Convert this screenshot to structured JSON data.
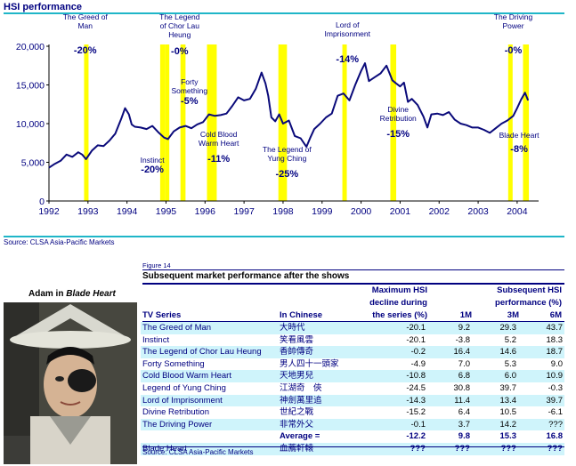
{
  "chart_title": "HSI performance",
  "chart_source": "Source: CLSA Asia-Pacific Markets",
  "chart_data": {
    "type": "line",
    "title": "HSI performance",
    "x_ticks": [
      "1992",
      "1993",
      "1994",
      "1995",
      "1996",
      "1997",
      "1998",
      "1999",
      "2000",
      "2001",
      "2002",
      "2003",
      "2004"
    ],
    "y_ticks": [
      "0",
      "5,000",
      "10,000",
      "15,000",
      "20,000"
    ],
    "xlim": [
      1992,
      2004.55
    ],
    "ylim": [
      0,
      20000
    ],
    "series": [
      {
        "x": [
          1992.0,
          1992.15,
          1992.3,
          1992.45,
          1992.6,
          1992.75,
          1992.85,
          1992.95,
          1993.1,
          1993.25,
          1993.4,
          1993.55,
          1993.7,
          1993.85,
          1993.95,
          1994.05,
          1994.12,
          1994.2,
          1994.35,
          1994.5,
          1994.65,
          1994.8,
          1994.95,
          1995.05,
          1995.2,
          1995.35,
          1995.5,
          1995.65,
          1995.8,
          1995.95,
          1996.1,
          1996.25,
          1996.4,
          1996.55,
          1996.7,
          1996.85,
          1997.0,
          1997.15,
          1997.3,
          1997.45,
          1997.55,
          1997.62,
          1997.7,
          1997.8,
          1997.9,
          1998.0,
          1998.15,
          1998.3,
          1998.45,
          1998.6,
          1998.7,
          1998.8,
          1998.95,
          1999.1,
          1999.25,
          1999.4,
          1999.55,
          1999.7,
          1999.85,
          2000.0,
          2000.1,
          2000.2,
          2000.35,
          2000.5,
          2000.65,
          2000.8,
          2000.9,
          2001.0,
          2001.1,
          2001.2,
          2001.3,
          2001.45,
          2001.6,
          2001.7,
          2001.8,
          2001.95,
          2002.1,
          2002.25,
          2002.4,
          2002.55,
          2002.7,
          2002.85,
          2003.0,
          2003.15,
          2003.3,
          2003.45,
          2003.6,
          2003.75,
          2003.9,
          2004.0,
          2004.1,
          2004.2,
          2004.28
        ],
        "y": [
          4300,
          4800,
          5200,
          6000,
          5700,
          6300,
          6000,
          5400,
          6500,
          7200,
          7100,
          7800,
          8700,
          10600,
          12000,
          11200,
          9900,
          9600,
          9500,
          9300,
          9700,
          8900,
          8200,
          8000,
          9000,
          9500,
          9700,
          9400,
          9900,
          10200,
          11200,
          11000,
          11100,
          11300,
          12300,
          13400,
          13000,
          13200,
          14500,
          16600,
          15200,
          13600,
          10800,
          10300,
          11200,
          10000,
          10400,
          8400,
          8100,
          7000,
          8200,
          9300,
          10000,
          10800,
          11300,
          13600,
          13900,
          13000,
          15000,
          16800,
          17800,
          15500,
          16000,
          16500,
          17500,
          15600,
          15200,
          14800,
          15300,
          12800,
          13200,
          12400,
          10900,
          9500,
          11200,
          11300,
          11100,
          11500,
          10500,
          10000,
          9800,
          9500,
          9500,
          9200,
          8800,
          9400,
          10000,
          10400,
          11000,
          12000,
          13100,
          14000,
          13000
        ]
      }
    ],
    "show_periods": [
      {
        "label": "The Greed of Man",
        "value": "-20%",
        "start": 1992.9,
        "end": 1993.0
      },
      {
        "label": "Instinct",
        "value": "-20%",
        "start": 1994.85,
        "end": 1994.97
      },
      {
        "label": "The Legend of Chor Lau Heung",
        "value": "-0%",
        "start": 1994.97,
        "end": 1995.07
      },
      {
        "label": "Forty Something",
        "value": "-5%",
        "start": 1995.37,
        "end": 1995.5
      },
      {
        "label": "Cold Blood Warm Heart",
        "value": "-11%",
        "start": 1996.05,
        "end": 1996.3
      },
      {
        "label": "The Legend of Yung Ching",
        "value": "-25%",
        "start": 1997.88,
        "end": 1998.1
      },
      {
        "label": "Lord of Imprisonment",
        "value": "-14%",
        "start": 1999.52,
        "end": 1999.62
      },
      {
        "label": "Divine Retribution",
        "value": "-15%",
        "start": 2000.75,
        "end": 2000.9
      },
      {
        "label": "The Driving Power",
        "value": "-0%",
        "start": 2003.77,
        "end": 2003.87
      },
      {
        "label": "Blade Heart",
        "value": "-8%",
        "start": 2004.15,
        "end": 2004.3
      }
    ]
  },
  "figure_label": "Figure 14",
  "table_title": "Subsequent market performance after the shows",
  "photo_label_prefix": "Adam in ",
  "photo_label_title": "Blade Heart",
  "table_headers": {
    "max_decline_l1": "Maximum HSI",
    "max_decline_l2": "decline during",
    "max_decline_l3": "the series (%)",
    "subsequent_l1": "Subsequent HSI",
    "subsequent_l2": "performance (%)",
    "tv_series": "TV Series",
    "in_chinese": "In Chinese",
    "m1": "1M",
    "m3": "3M",
    "m6": "6M"
  },
  "table_rows": [
    {
      "name": "The Greed of Man",
      "chinese": "大時代",
      "decline": "-20.1",
      "m1": "9.2",
      "m3": "29.3",
      "m6": "43.7",
      "hl": true
    },
    {
      "name": "Instinct",
      "chinese": "笑看風雲",
      "decline": "-20.1",
      "m1": "-3.8",
      "m3": "5.2",
      "m6": "18.3",
      "hl": false
    },
    {
      "name": "The Legend of Chor Lau Heung",
      "chinese": "香帥傳奇",
      "decline": "-0.2",
      "m1": "16.4",
      "m3": "14.6",
      "m6": "18.7",
      "hl": true
    },
    {
      "name": "Forty Something",
      "chinese": "男人四十一頭家",
      "decline": "-4.9",
      "m1": "7.0",
      "m3": "5.3",
      "m6": "9.0",
      "hl": false
    },
    {
      "name": "Cold Blood Warm Heart",
      "chinese": "天地男兒",
      "decline": "-10.8",
      "m1": "6.8",
      "m3": "6.0",
      "m6": "10.9",
      "hl": true
    },
    {
      "name": "Legend of Yung Ching",
      "chinese": "江湖奇　俠",
      "decline": "-24.5",
      "m1": "30.8",
      "m3": "39.7",
      "m6": "-0.3",
      "hl": false
    },
    {
      "name": "Lord of Imprisonment",
      "chinese": "神劍萬里追",
      "decline": "-14.3",
      "m1": "11.4",
      "m3": "13.4",
      "m6": "39.7",
      "hl": true
    },
    {
      "name": "Divine Retribution",
      "chinese": "世紀之戰",
      "decline": "-15.2",
      "m1": "6.4",
      "m3": "10.5",
      "m6": "-6.1",
      "hl": false
    },
    {
      "name": "The Driving Power",
      "chinese": "非常外父",
      "decline": "-0.1",
      "m1": "3.7",
      "m3": "14.2",
      "m6": "???",
      "hl": true
    }
  ],
  "average_row": {
    "label": "Average =",
    "decline": "-12.2",
    "m1": "9.8",
    "m3": "15.3",
    "m6": "16.8"
  },
  "blade_row": {
    "name": "Blade Heart",
    "chinese": "血薦軒轅",
    "decline": "???",
    "m1": "???",
    "m3": "???",
    "m6": "???"
  },
  "table_source": "Source: CLSA Asia-Pacific Markets",
  "colors": {
    "navy": "#000080",
    "yellow": "#ffff00",
    "cyan_rule": "#1fb6c8",
    "row_highlight": "#cff4fb",
    "line": "#0a0a7a"
  }
}
